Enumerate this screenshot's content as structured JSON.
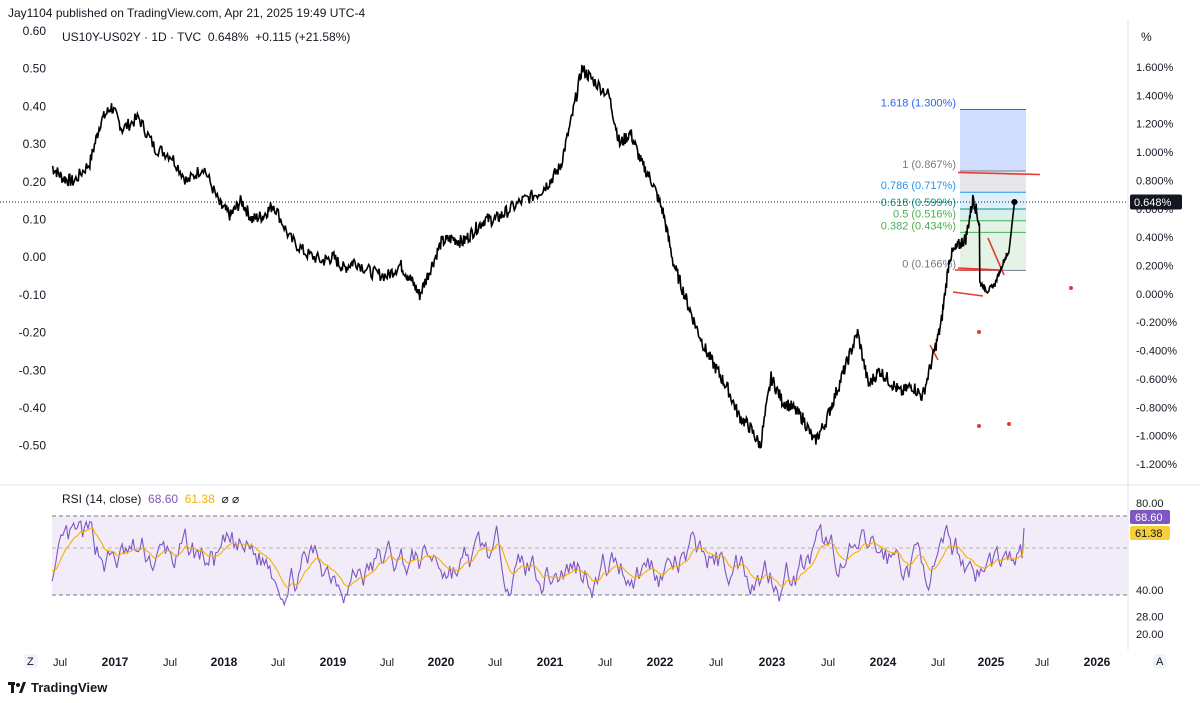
{
  "header": {
    "publisher": "Jay1104 published on TradingView.com, Apr 21, 2025 19:49 UTC-4",
    "symbol": "US10Y-US02Y · 1D · TVC",
    "price": "0.648%",
    "change": "+0.115 (+21.58%)",
    "rsi_title": "RSI (14, close)",
    "rsi_value": "68.60",
    "rsi_ma_value": "61.38",
    "rsi_icons": "⌀ ⌀",
    "unit": "%"
  },
  "footer": {
    "brand": "TradingView",
    "z_button": "Z",
    "a_button": "A"
  },
  "colors": {
    "price_line": "#000000",
    "rsi_line": "#7e57c2",
    "rsi_ma": "#f7b000",
    "rsi_band_fill": "#ede7f6",
    "fib_blue": "#2962ff",
    "fib_green": "#4caf50",
    "fib_gray": "#787b86",
    "trend_red": "#e53935",
    "current_price_badge": "#131722",
    "rsi_badge": "#7e57c2",
    "ma_badge": "#f7d038"
  },
  "chart_data": [
    {
      "type": "line",
      "title": "US10Y-US02Y · 1D · TVC",
      "x_axis_labels": [
        "Jul",
        "2017",
        "Jul",
        "2018",
        "Jul",
        "2019",
        "Jul",
        "2020",
        "Jul",
        "2021",
        "Jul",
        "2022",
        "Jul",
        "2023",
        "Jul",
        "2024",
        "Jul",
        "2025",
        "Jul",
        "2026"
      ],
      "y_left_ticks": [
        "0.60",
        "0.50",
        "0.40",
        "0.30",
        "0.20",
        "0.10",
        "0.00",
        "-0.10",
        "-0.20",
        "-0.30",
        "-0.40",
        "-0.50"
      ],
      "y_right_ticks": [
        "1.600%",
        "1.400%",
        "1.200%",
        "1.000%",
        "0.800%",
        "0.600%",
        "0.400%",
        "0.200%",
        "0.000%",
        "-0.200%",
        "-0.400%",
        "-0.600%",
        "-0.800%",
        "-1.000%",
        "-1.200%"
      ],
      "ylim_left": [
        -0.55,
        0.62
      ],
      "series": [
        {
          "values_xy": [
            [
              2016.4,
              0.24
            ],
            [
              2016.5,
              0.21
            ],
            [
              2016.6,
              0.2
            ],
            [
              2016.75,
              0.25
            ],
            [
              2016.85,
              0.36
            ],
            [
              2016.95,
              0.4
            ],
            [
              2017.05,
              0.34
            ],
            [
              2017.2,
              0.37
            ],
            [
              2017.35,
              0.29
            ],
            [
              2017.5,
              0.27
            ],
            [
              2017.65,
              0.2
            ],
            [
              2017.8,
              0.24
            ],
            [
              2017.95,
              0.14
            ],
            [
              2018.05,
              0.11
            ],
            [
              2018.15,
              0.15
            ],
            [
              2018.25,
              0.1
            ],
            [
              2018.35,
              0.11
            ],
            [
              2018.45,
              0.14
            ],
            [
              2018.6,
              0.05
            ],
            [
              2018.75,
              0.01
            ],
            [
              2018.9,
              -0.01
            ],
            [
              2019.0,
              0.0
            ],
            [
              2019.1,
              -0.03
            ],
            [
              2019.2,
              -0.01
            ],
            [
              2019.35,
              -0.04
            ],
            [
              2019.5,
              -0.05
            ],
            [
              2019.62,
              -0.02
            ],
            [
              2019.72,
              -0.06
            ],
            [
              2019.8,
              -0.1
            ],
            [
              2019.9,
              -0.03
            ],
            [
              2020.0,
              0.04
            ],
            [
              2020.1,
              0.05
            ],
            [
              2020.2,
              0.04
            ],
            [
              2020.3,
              0.07
            ],
            [
              2020.4,
              0.1
            ],
            [
              2020.5,
              0.1
            ],
            [
              2020.6,
              0.12
            ],
            [
              2020.75,
              0.15
            ],
            [
              2020.9,
              0.17
            ],
            [
              2021.0,
              0.2
            ],
            [
              2021.1,
              0.24
            ],
            [
              2021.2,
              0.36
            ],
            [
              2021.3,
              0.5
            ],
            [
              2021.4,
              0.47
            ],
            [
              2021.55,
              0.43
            ],
            [
              2021.65,
              0.3
            ],
            [
              2021.75,
              0.33
            ],
            [
              2021.85,
              0.25
            ],
            [
              2021.95,
              0.2
            ],
            [
              2022.05,
              0.12
            ],
            [
              2022.15,
              -0.02
            ],
            [
              2022.25,
              -0.1
            ],
            [
              2022.35,
              -0.18
            ],
            [
              2022.45,
              -0.25
            ],
            [
              2022.55,
              -0.3
            ],
            [
              2022.65,
              -0.35
            ],
            [
              2022.75,
              -0.42
            ],
            [
              2022.85,
              -0.45
            ],
            [
              2022.95,
              -0.5
            ],
            [
              2023.05,
              -0.32
            ],
            [
              2023.15,
              -0.38
            ],
            [
              2023.25,
              -0.4
            ],
            [
              2023.35,
              -0.43
            ],
            [
              2023.45,
              -0.49
            ],
            [
              2023.55,
              -0.44
            ],
            [
              2023.65,
              -0.36
            ],
            [
              2023.75,
              -0.28
            ],
            [
              2023.85,
              -0.2
            ],
            [
              2023.95,
              -0.34
            ],
            [
              2024.05,
              -0.3
            ],
            [
              2024.15,
              -0.33
            ],
            [
              2024.25,
              -0.36
            ],
            [
              2024.35,
              -0.34
            ],
            [
              2024.45,
              -0.37
            ],
            [
              2024.55,
              -0.26
            ],
            [
              2024.62,
              -0.18
            ],
            [
              2024.7,
              0.0
            ],
            [
              2024.78,
              0.03
            ],
            [
              2024.85,
              0.05
            ],
            [
              2024.92,
              0.16
            ],
            [
              2024.98,
              0.08
            ],
            [
              2025.05,
              0.02
            ],
            [
              2025.12,
              0.07
            ],
            [
              2025.2,
              0.23
            ],
            [
              2025.25,
              0.3
            ],
            [
              2025.3,
              0.648
            ]
          ]
        }
      ],
      "current_value": "0.648%",
      "fib_levels": [
        {
          "label": "1.618 (1.300%)",
          "value": 1.3
        },
        {
          "label": "1 (0.867%)",
          "value": 0.867
        },
        {
          "label": "0.786 (0.717%)",
          "value": 0.717
        },
        {
          "label": "0.618 (0.599%)",
          "value": 0.599
        },
        {
          "label": "0.5 (0.516%)",
          "value": 0.516
        },
        {
          "label": "0.382 (0.434%)",
          "value": 0.434
        },
        {
          "label": "0 (0.166%)",
          "value": 0.166
        }
      ],
      "grid": false
    },
    {
      "type": "line",
      "title": "RSI (14, close)",
      "y_ticks": [
        "80.00",
        "40.00",
        "28.00",
        "20.00"
      ],
      "band": [
        30,
        70
      ],
      "last_rsi": 68.6,
      "last_ma": 61.38
    }
  ]
}
